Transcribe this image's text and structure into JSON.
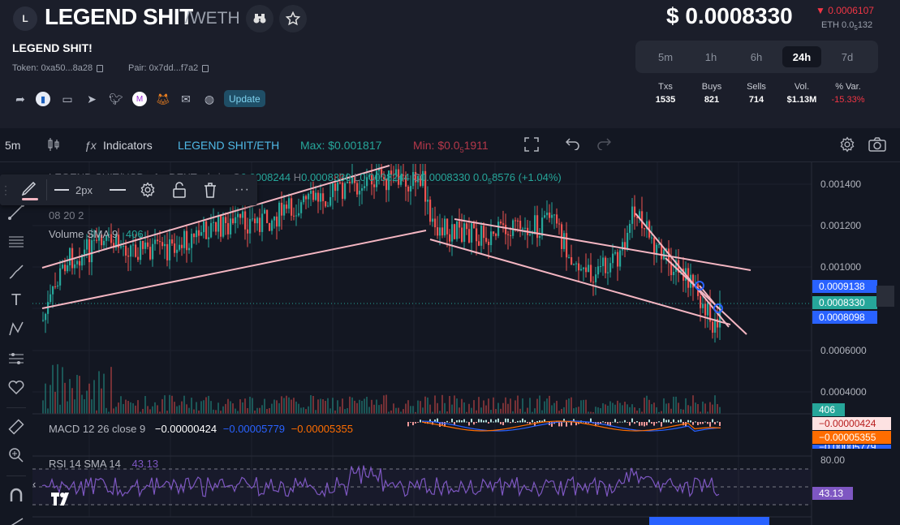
{
  "header": {
    "logo_letter": "L",
    "name": "LEGEND SHIT",
    "pair_suffix": "/WETH",
    "full_name": "LEGEND SHIT!",
    "token": "Token: 0xa50...8a28",
    "pair": "Pair: 0x7dd...f7a2",
    "update_label": "Update",
    "price": "$ 0.0008330",
    "price_change": "0.0006107",
    "price_eth_prefix": "ETH 0.0",
    "price_eth_sub": "5",
    "price_eth_suffix": "132",
    "timeframes": [
      "5m",
      "1h",
      "6h",
      "24h",
      "7d"
    ],
    "active_timeframe": "24h",
    "stats": [
      {
        "label": "Txs",
        "value": "1535"
      },
      {
        "label": "Buys",
        "value": "821"
      },
      {
        "label": "Sells",
        "value": "714"
      },
      {
        "label": "Vol.",
        "value": "$1.13M"
      },
      {
        "label": "% Var.",
        "value": "-15.33%"
      }
    ],
    "icons": {
      "binoculars": "binoculars-icon",
      "star": "star-icon"
    },
    "socials": [
      "share-icon",
      "dextools-icon",
      "website-icon",
      "telegram-icon",
      "twitter-icon",
      "markets-icon",
      "metamask-icon",
      "email-icon",
      "discord-icon"
    ]
  },
  "toolbar": {
    "interval": "5m",
    "indicators": "Indicators",
    "symbol": "LEGEND SHIT/ETH",
    "max": "Max: $0.001817",
    "min_prefix": "Min: $0.0",
    "min_sub": "5",
    "min_suffix": "1911"
  },
  "draw_toolbar": {
    "width_label": "2px"
  },
  "chart": {
    "legend_symbol": "LEGEND SHIT/USD · 1 · DEXTools.io",
    "ohlc": {
      "o": "0.0008244",
      "h": "0.0008330",
      "l": "0.0008244",
      "c": "0.0008330",
      "change_prefix": "0.0",
      "change_sub": "5",
      "change_suffix": "8576 (+1.04%)"
    },
    "date_partial": "08 20 2",
    "volume_label": "Volume SMA 9",
    "volume_value": "406",
    "y_axis": [
      "0.001400",
      "0.001200",
      "0.001000",
      "0.0006000",
      "0.0004000"
    ],
    "price_tags": [
      {
        "value": "0.0009138",
        "color": "#2962ff"
      },
      {
        "value": "0.0008330",
        "color": "#26a69a"
      },
      {
        "value": "0.0008098",
        "color": "#2962ff"
      }
    ],
    "volume_tag": "406",
    "macd": {
      "label": "MACD 12 26 close 9",
      "v1": "−0.00000424",
      "v2": "−0.00005779",
      "v3": "−0.00005355",
      "tags": [
        "−0.00000424",
        "−0.00005355",
        "−0.00005779"
      ]
    },
    "rsi": {
      "label": "RSI 14 SMA 14",
      "value": "43.13",
      "axis_top": "80.00",
      "tag": "43.13"
    }
  },
  "colors": {
    "up": "#26a69a",
    "down": "#ef5350",
    "trendline": "#f4b6c2",
    "rsi": "#7e57c2",
    "macd": "#2962ff",
    "signal": "#ff6d00"
  }
}
